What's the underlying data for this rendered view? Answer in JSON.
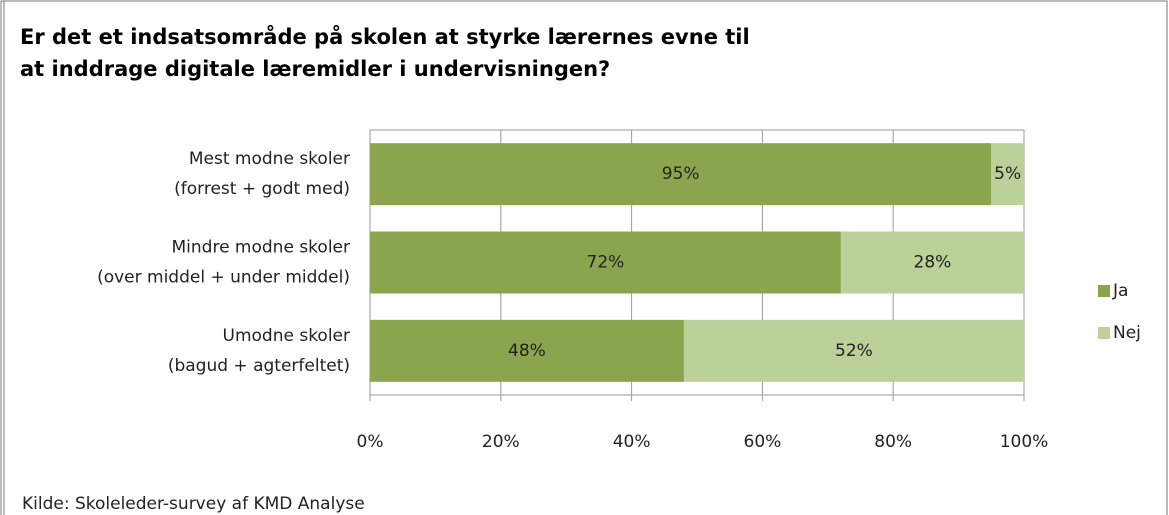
{
  "chart_data": {
    "type": "stacked-bar-horizontal",
    "title": [
      "Er det et indsatsområde på skolen at styrke lærernes evne til",
      "at inddrage digitale læremidler i undervisningen?"
    ],
    "categories": [
      [
        "Mest modne skoler",
        "(forrest + godt med)"
      ],
      [
        "Mindre modne skoler",
        "(over middel + under middel)"
      ],
      [
        "Umodne skoler",
        "(bagud + agterfeltet)"
      ]
    ],
    "series": [
      {
        "name": "Ja",
        "color": "#8aa54e",
        "values": [
          95,
          72,
          48
        ],
        "value_labels": [
          "95%",
          "72%",
          "48%"
        ]
      },
      {
        "name": "Nej",
        "color": "#bcd09a",
        "values": [
          5,
          28,
          52
        ],
        "value_labels": [
          "5%",
          "28%",
          "52%"
        ]
      }
    ],
    "xlim": [
      0,
      100
    ],
    "xticks": [
      {
        "value": 0,
        "label": "0%"
      },
      {
        "value": 20,
        "label": "20%"
      },
      {
        "value": 40,
        "label": "40%"
      },
      {
        "value": 60,
        "label": "60%"
      },
      {
        "value": 80,
        "label": "80%"
      },
      {
        "value": 100,
        "label": "100%"
      }
    ],
    "grid": true,
    "legend": "right",
    "source": "Kilde: Skoleleder-survey af KMD Analyse"
  }
}
